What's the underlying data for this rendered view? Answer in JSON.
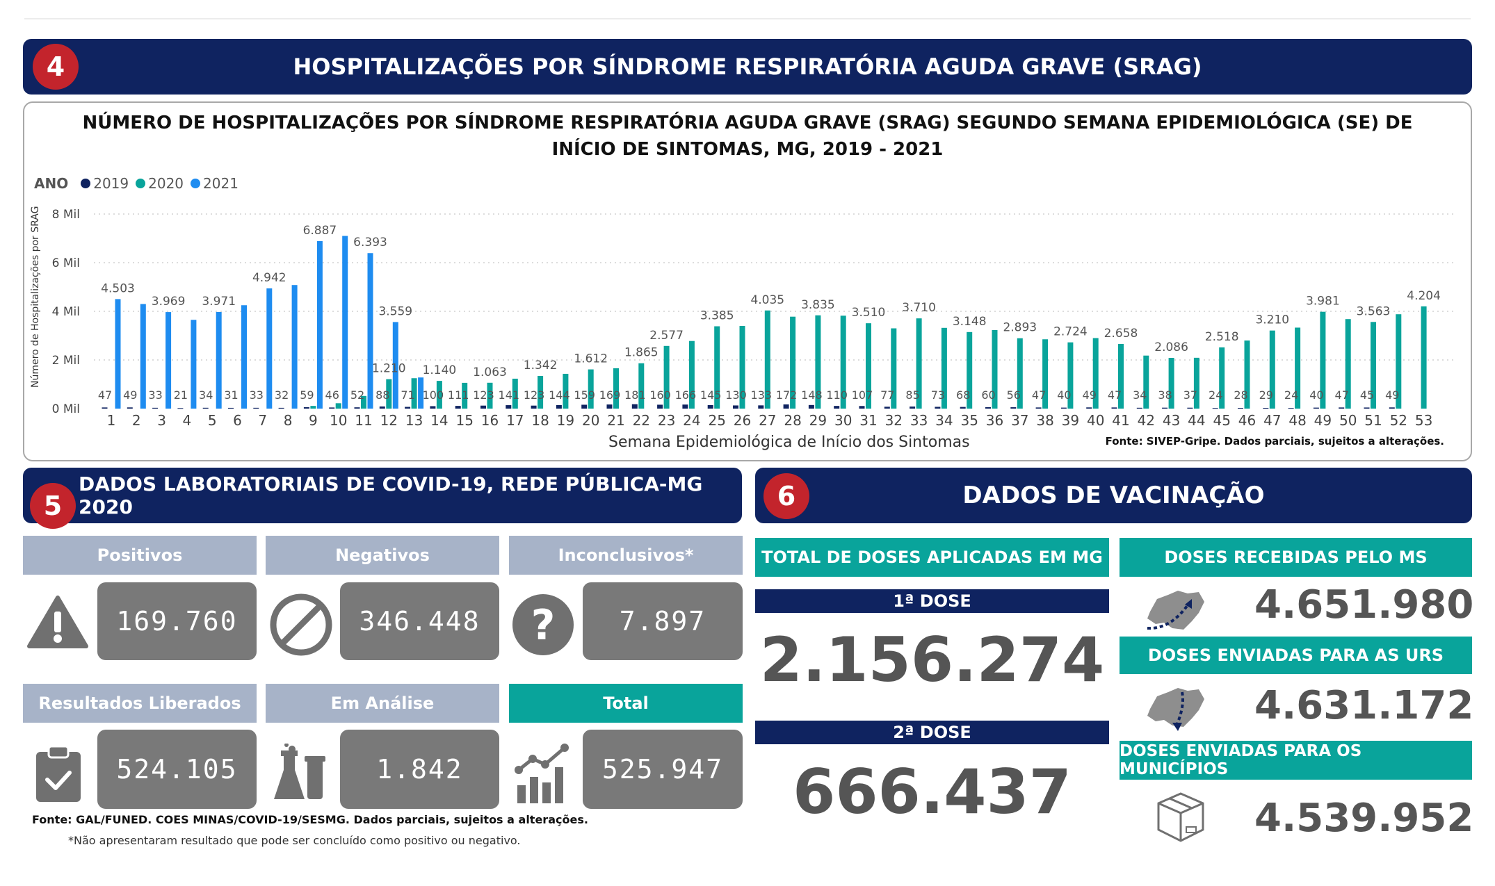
{
  "section4": {
    "number": "4",
    "title": "HOSPITALIZAÇÕES POR SÍNDROME RESPIRATÓRIA AGUDA GRAVE (SRAG)"
  },
  "chart_data": {
    "type": "bar",
    "title": "NÚMERO DE HOSPITALIZAÇÕES POR SÍNDROME RESPIRATÓRIA AGUDA GRAVE (SRAG) SEGUNDO SEMANA EPIDEMIOLÓGICA (SE) DE INÍCIO DE SINTOMAS, MG, 2019 - 2021",
    "legend_title": "ANO",
    "xlabel": "Semana Epidemiológica de Início dos Sintomas",
    "ylabel": "Número de Hospitalizações por SRAG",
    "source": "Fonte: SIVEP-Gripe. Dados parciais, sujeitos a alterações.",
    "ylim": [
      0,
      8000
    ],
    "yticks": [
      "0 Mil",
      "2 Mil",
      "4 Mil",
      "6 Mil",
      "8 Mil"
    ],
    "grid": true,
    "legend_position": "top-left",
    "categories": [
      "1",
      "2",
      "3",
      "4",
      "5",
      "6",
      "7",
      "8",
      "9",
      "10",
      "11",
      "12",
      "13",
      "14",
      "15",
      "16",
      "17",
      "18",
      "19",
      "20",
      "21",
      "22",
      "23",
      "24",
      "25",
      "26",
      "27",
      "28",
      "29",
      "30",
      "31",
      "32",
      "33",
      "34",
      "35",
      "36",
      "37",
      "38",
      "39",
      "40",
      "41",
      "42",
      "43",
      "44",
      "45",
      "46",
      "47",
      "48",
      "49",
      "50",
      "51",
      "52",
      "53"
    ],
    "series": [
      {
        "name": "2019",
        "color": "#0f2360",
        "values": [
          47,
          49,
          33,
          21,
          34,
          31,
          33,
          32,
          59,
          46,
          52,
          88,
          71,
          100,
          111,
          123,
          141,
          123,
          144,
          159,
          169,
          181,
          160,
          166,
          145,
          130,
          133,
          172,
          148,
          110,
          107,
          77,
          85,
          73,
          68,
          60,
          56,
          47,
          40,
          49,
          47,
          34,
          38,
          37,
          24,
          28,
          29,
          24,
          40,
          47,
          45,
          49,
          null
        ]
      },
      {
        "name": "2020",
        "color": "#09a49b",
        "values": [
          null,
          null,
          null,
          null,
          null,
          null,
          null,
          null,
          110,
          220,
          520,
          1210,
          1250,
          1140,
          1060,
          1063,
          1230,
          1342,
          1430,
          1612,
          1660,
          1865,
          2577,
          2780,
          3385,
          3400,
          4035,
          3780,
          3835,
          3820,
          3510,
          3300,
          3710,
          3320,
          3148,
          3230,
          2893,
          2850,
          2724,
          2900,
          2658,
          2180,
          2086,
          2090,
          2518,
          2800,
          3210,
          3330,
          3981,
          3680,
          3563,
          3880,
          4204
        ]
      },
      {
        "name": "2021",
        "color": "#1e8cf0",
        "values": [
          4503,
          4300,
          3969,
          3650,
          3971,
          4250,
          4942,
          5080,
          6887,
          7100,
          6393,
          3559,
          1280,
          null,
          null,
          null,
          null,
          null,
          null,
          null,
          null,
          null,
          null,
          null,
          null,
          null,
          null,
          null,
          null,
          null,
          null,
          null,
          null,
          null,
          null,
          null,
          null,
          null,
          null,
          null,
          null,
          null,
          null,
          null,
          null,
          null,
          null,
          null,
          null,
          null,
          null,
          null,
          null
        ]
      }
    ],
    "labels_2019": [
      "47",
      "49",
      "33",
      "21",
      "34",
      "31",
      "33",
      "32",
      "59",
      "46",
      "52",
      "88",
      "71",
      "100",
      "111",
      "123",
      "141",
      "123",
      "144",
      "159",
      "169",
      "181",
      "160",
      "166",
      "145",
      "130",
      "133",
      "172",
      "148",
      "110",
      "107",
      "77",
      "85",
      "73",
      "68",
      "60",
      "56",
      "47",
      "40",
      "49",
      "47",
      "34",
      "38",
      "37",
      "24",
      "28",
      "29",
      "24",
      "40",
      "47",
      "45",
      "49"
    ],
    "labels_top": [
      {
        "week": "1",
        "year": "2021",
        "text": "4.503"
      },
      {
        "week": "3",
        "year": "2021",
        "text": "3.969"
      },
      {
        "week": "5",
        "year": "2021",
        "text": "3.971"
      },
      {
        "week": "7",
        "year": "2021",
        "text": "4.942"
      },
      {
        "week": "9",
        "year": "2021",
        "text": "6.887"
      },
      {
        "week": "11",
        "year": "2021",
        "text": "6.393"
      },
      {
        "week": "12",
        "year": "2021",
        "text": "3.559"
      },
      {
        "week": "12",
        "year": "2020",
        "text": "1.210"
      },
      {
        "week": "14",
        "year": "2020",
        "text": "1.140"
      },
      {
        "week": "16",
        "year": "2020",
        "text": "1.063"
      },
      {
        "week": "18",
        "year": "2020",
        "text": "1.342"
      },
      {
        "week": "20",
        "year": "2020",
        "text": "1.612"
      },
      {
        "week": "22",
        "year": "2020",
        "text": "1.865"
      },
      {
        "week": "23",
        "year": "2020",
        "text": "2.577"
      },
      {
        "week": "25",
        "year": "2020",
        "text": "3.385"
      },
      {
        "week": "27",
        "year": "2020",
        "text": "4.035"
      },
      {
        "week": "29",
        "year": "2020",
        "text": "3.835"
      },
      {
        "week": "31",
        "year": "2020",
        "text": "3.510"
      },
      {
        "week": "33",
        "year": "2020",
        "text": "3.710"
      },
      {
        "week": "35",
        "year": "2020",
        "text": "3.148"
      },
      {
        "week": "37",
        "year": "2020",
        "text": "2.893"
      },
      {
        "week": "39",
        "year": "2020",
        "text": "2.724"
      },
      {
        "week": "41",
        "year": "2020",
        "text": "2.658"
      },
      {
        "week": "43",
        "year": "2020",
        "text": "2.086"
      },
      {
        "week": "45",
        "year": "2020",
        "text": "2.518"
      },
      {
        "week": "47",
        "year": "2020",
        "text": "3.210"
      },
      {
        "week": "49",
        "year": "2020",
        "text": "3.981"
      },
      {
        "week": "51",
        "year": "2020",
        "text": "3.563"
      },
      {
        "week": "53",
        "year": "2020",
        "text": "4.204"
      }
    ]
  },
  "section5": {
    "number": "5",
    "title": "DADOS LABORATORIAIS DE COVID-19, REDE PÚBLICA-MG 2020",
    "cards": [
      {
        "label": "Positivos",
        "value": "169.760",
        "icon": "warning-icon"
      },
      {
        "label": "Negativos",
        "value": "346.448",
        "icon": "prohibited-icon"
      },
      {
        "label": "Inconclusivos*",
        "value": "7.897",
        "icon": "question-icon"
      },
      {
        "label": "Resultados Liberados",
        "value": "524.105",
        "icon": "clipboard-check-icon"
      },
      {
        "label": "Em Análise",
        "value": "1.842",
        "icon": "lab-flask-icon"
      },
      {
        "label": "Total",
        "value": "525.947",
        "icon": "growth-chart-icon"
      }
    ],
    "source": "Fonte: GAL/FUNED. COES MINAS/COVID-19/SESMG. Dados parciais, sujeitos a alterações.",
    "footnote": "*Não apresentaram resultado que pode ser concluído como positivo ou negativo."
  },
  "section6": {
    "number": "6",
    "title": "DADOS DE VACINAÇÃO",
    "total_header": "TOTAL DE DOSES APLICADAS EM MG",
    "dose1_label": "1ª DOSE",
    "dose1_value": "2.156.274",
    "dose2_label": "2ª DOSE",
    "dose2_value": "666.437",
    "received_header": "DOSES RECEBIDAS PELO MS",
    "received_value": "4.651.980",
    "urs_header": "DOSES ENVIADAS PARA AS URS",
    "urs_value": "4.631.172",
    "municipios_header": "DOSES ENVIADAS PARA OS MUNICÍPIOS",
    "municipios_value": "4.539.952",
    "colors": {
      "navy": "#0f2360",
      "teal": "#09a49b",
      "red": "#c3242c",
      "gray_box": "#797979",
      "gray_header": "#a7b3c8"
    }
  }
}
